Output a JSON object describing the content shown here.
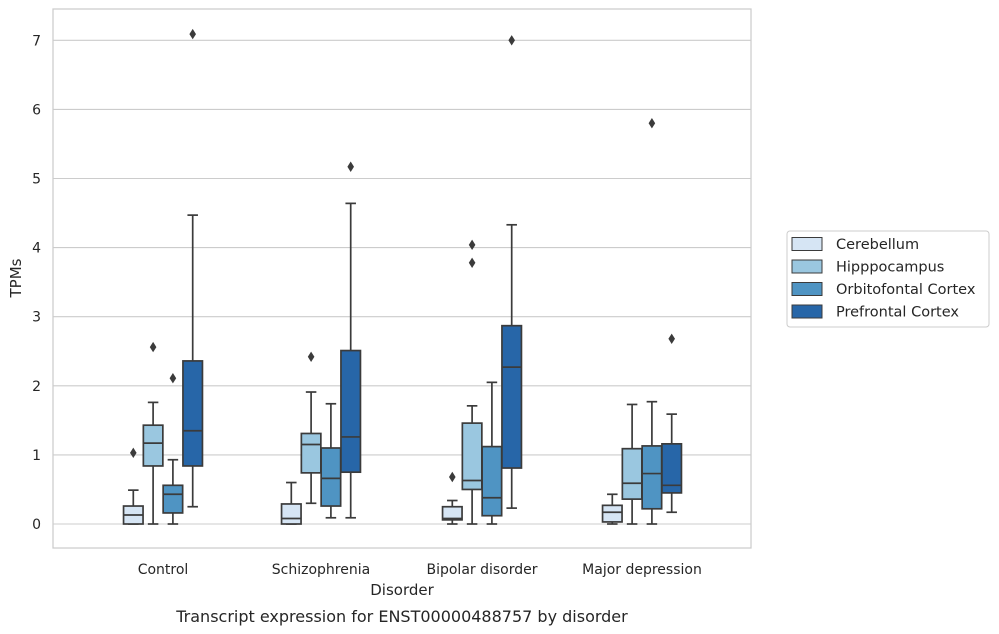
{
  "chart_data": {
    "type": "box",
    "title": "",
    "caption": "Transcript expression for ENST00000488757 by disorder",
    "xlabel": "Disorder",
    "ylabel": "TPMs",
    "ylim": [
      -0.33,
      7.45
    ],
    "yticks": [
      "0",
      "1",
      "2",
      "3",
      "4",
      "5",
      "6",
      "7"
    ],
    "grid": "horizontal",
    "legend_position": "right",
    "categories": [
      "Control",
      "Schizophrenia",
      "Bipolar disorder",
      "Major depression"
    ],
    "series": [
      {
        "name": "Cerebellum",
        "color": "#d6e5f4",
        "boxes": [
          {
            "whisker_low": 0.0,
            "q1": 0.0,
            "median": 0.13,
            "q3": 0.26,
            "whisker_high": 0.49,
            "outliers": [
              1.03
            ]
          },
          {
            "whisker_low": 0.0,
            "q1": 0.0,
            "median": 0.08,
            "q3": 0.29,
            "whisker_high": 0.6,
            "outliers": []
          },
          {
            "whisker_low": 0.0,
            "q1": 0.06,
            "median": 0.08,
            "q3": 0.25,
            "whisker_high": 0.34,
            "outliers": [
              0.68
            ]
          },
          {
            "whisker_low": 0.0,
            "q1": 0.03,
            "median": 0.17,
            "q3": 0.27,
            "whisker_high": 0.43,
            "outliers": []
          }
        ]
      },
      {
        "name": "Hipppocampus",
        "color": "#9ac7e0",
        "boxes": [
          {
            "whisker_low": 0.0,
            "q1": 0.84,
            "median": 1.17,
            "q3": 1.43,
            "whisker_high": 1.76,
            "outliers": [
              2.56
            ]
          },
          {
            "whisker_low": 0.3,
            "q1": 0.74,
            "median": 1.15,
            "q3": 1.31,
            "whisker_high": 1.91,
            "outliers": [
              2.42
            ]
          },
          {
            "whisker_low": 0.0,
            "q1": 0.5,
            "median": 0.63,
            "q3": 1.46,
            "whisker_high": 1.71,
            "outliers": [
              3.78,
              4.04
            ]
          },
          {
            "whisker_low": 0.0,
            "q1": 0.36,
            "median": 0.59,
            "q3": 1.09,
            "whisker_high": 1.73,
            "outliers": []
          }
        ]
      },
      {
        "name": "Orbitofontal Cortex",
        "color": "#4f94c3",
        "boxes": [
          {
            "whisker_low": 0.0,
            "q1": 0.16,
            "median": 0.43,
            "q3": 0.56,
            "whisker_high": 0.93,
            "outliers": [
              2.11
            ]
          },
          {
            "whisker_low": 0.09,
            "q1": 0.26,
            "median": 0.66,
            "q3": 1.1,
            "whisker_high": 1.74,
            "outliers": []
          },
          {
            "whisker_low": 0.0,
            "q1": 0.12,
            "median": 0.38,
            "q3": 1.12,
            "whisker_high": 2.05,
            "outliers": []
          },
          {
            "whisker_low": 0.0,
            "q1": 0.22,
            "median": 0.73,
            "q3": 1.13,
            "whisker_high": 1.77,
            "outliers": [
              5.8
            ]
          }
        ]
      },
      {
        "name": "Prefrontal Cortex",
        "color": "#2766a8",
        "boxes": [
          {
            "whisker_low": 0.25,
            "q1": 0.84,
            "median": 1.35,
            "q3": 2.36,
            "whisker_high": 4.47,
            "outliers": [
              7.09
            ]
          },
          {
            "whisker_low": 0.09,
            "q1": 0.75,
            "median": 1.26,
            "q3": 2.51,
            "whisker_high": 4.64,
            "outliers": [
              5.17
            ]
          },
          {
            "whisker_low": 0.23,
            "q1": 0.81,
            "median": 2.27,
            "q3": 2.87,
            "whisker_high": 4.33,
            "outliers": [
              7.0
            ]
          },
          {
            "whisker_low": 0.17,
            "q1": 0.45,
            "median": 0.56,
            "q3": 1.16,
            "whisker_high": 1.59,
            "outliers": [
              2.68
            ]
          }
        ]
      }
    ]
  }
}
